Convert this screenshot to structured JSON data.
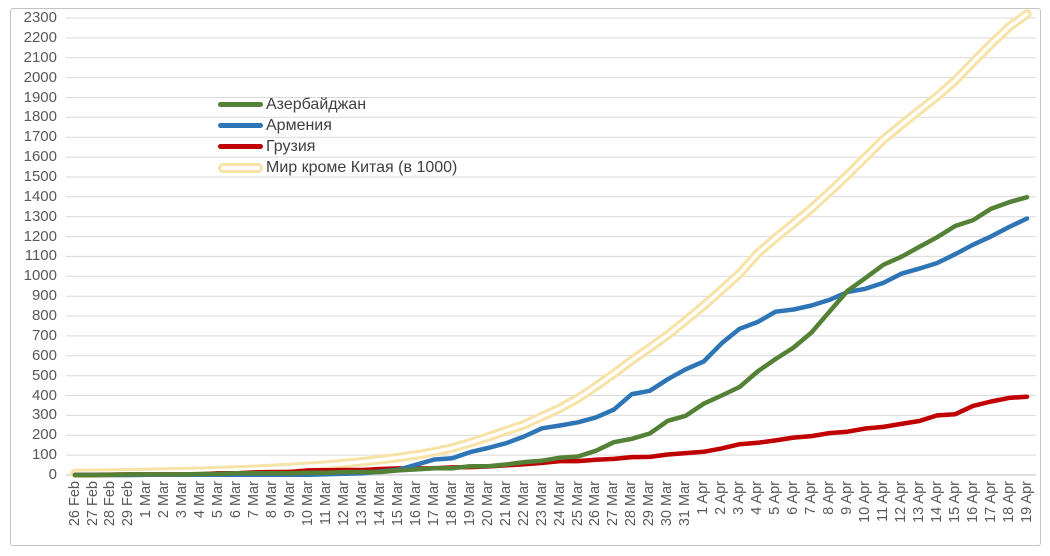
{
  "chart_data": {
    "type": "line",
    "x_labels": [
      "26 Feb",
      "27 Feb",
      "28 Feb",
      "29 Feb",
      "1 Mar",
      "2 Mar",
      "3 Mar",
      "4 Mar",
      "5 Mar",
      "6 Mar",
      "7 Mar",
      "8 Mar",
      "9 Mar",
      "10 Mar",
      "11 Mar",
      "12 Mar",
      "13 Mar",
      "14 Mar",
      "15 Mar",
      "16 Mar",
      "17 Mar",
      "18 Mar",
      "19 Mar",
      "20 Mar",
      "21 Mar",
      "22 Mar",
      "23 Mar",
      "24 Mar",
      "25 Mar",
      "26 Mar",
      "27 Mar",
      "28 Mar",
      "29 Mar",
      "30 Mar",
      "31 Mar",
      "1 Apr",
      "2 Apr",
      "3 Apr",
      "4 Apr",
      "5 Apr",
      "6 Apr",
      "7 Apr",
      "8 Apr",
      "9 Apr",
      "10 Apr",
      "11 Apr",
      "12 Apr",
      "13 Apr",
      "14 Apr",
      "15 Apr",
      "16 Apr",
      "17 Apr",
      "18 Apr",
      "19 Apr"
    ],
    "y_axis": {
      "min": 0,
      "max": 2300,
      "step": 100,
      "tick_labels": [
        "0",
        "100",
        "200",
        "300",
        "400",
        "500",
        "600",
        "700",
        "800",
        "900",
        "1000",
        "1100",
        "1200",
        "1300",
        "1400",
        "1500",
        "1600",
        "1700",
        "1800",
        "1900",
        "2000",
        "2100",
        "2200",
        "2300"
      ]
    },
    "grid": true,
    "legend_position": "inside-top-left",
    "series": [
      {
        "name": "Азербайджан",
        "color": "#538135",
        "style": "solid",
        "values": [
          0,
          0,
          1,
          3,
          3,
          3,
          3,
          5,
          6,
          9,
          9,
          9,
          9,
          11,
          11,
          15,
          15,
          15,
          23,
          28,
          34,
          34,
          44,
          44,
          53,
          65,
          72,
          87,
          93,
          122,
          165,
          182,
          209,
          273,
          298,
          359,
          400,
          443,
          521,
          584,
          641,
          717,
          822,
          926,
          991,
          1058,
          1098,
          1148,
          1197,
          1253,
          1283,
          1340,
          1373,
          1398
        ]
      },
      {
        "name": "Армения",
        "color": "#2E75B6",
        "style": "solid",
        "values": [
          0,
          0,
          0,
          0,
          1,
          1,
          1,
          1,
          1,
          1,
          1,
          1,
          1,
          1,
          4,
          6,
          8,
          18,
          26,
          52,
          78,
          84,
          115,
          136,
          160,
          194,
          235,
          249,
          265,
          290,
          329,
          407,
          424,
          482,
          532,
          571,
          663,
          736,
          770,
          822,
          833,
          853,
          881,
          921,
          937,
          967,
          1013,
          1039,
          1067,
          1111,
          1159,
          1201,
          1248,
          1291
        ]
      },
      {
        "name": "Грузия",
        "color": "#C00000",
        "style": "solid",
        "values": [
          1,
          1,
          2,
          3,
          3,
          3,
          3,
          4,
          9,
          9,
          13,
          15,
          15,
          23,
          24,
          25,
          25,
          30,
          33,
          33,
          34,
          38,
          40,
          43,
          49,
          54,
          61,
          70,
          70,
          77,
          81,
          90,
          91,
          103,
          110,
          117,
          134,
          155,
          162,
          174,
          188,
          196,
          211,
          218,
          234,
          242,
          257,
          272,
          300,
          306,
          348,
          370,
          388,
          394
        ]
      },
      {
        "name": "Мир кроме Китая (в 1000)",
        "color": "#F7E3A8",
        "style": "outlined",
        "inner_color": "#FFFFFF",
        "values": [
          8,
          9,
          10,
          11,
          13,
          15,
          17,
          19,
          22,
          25,
          29,
          33,
          38,
          44,
          50,
          58,
          67,
          77,
          88,
          101,
          117,
          136,
          162,
          191,
          223,
          253,
          295,
          336,
          386,
          446,
          510,
          578,
          640,
          705,
          777,
          852,
          932,
          1013,
          1115,
          1193,
          1266,
          1342,
          1424,
          1509,
          1599,
          1688,
          1762,
          1835,
          1906,
          1985,
          2078,
          2169,
          2255,
          2320
        ]
      }
    ],
    "colors": {
      "gridline": "#D9D9D9",
      "axis_line": "#BFBFBF",
      "tick_label": "#595959",
      "legend_text": "#3F3F3F",
      "background": "#FFFFFF",
      "frame_border": "#C3C3C3"
    }
  }
}
